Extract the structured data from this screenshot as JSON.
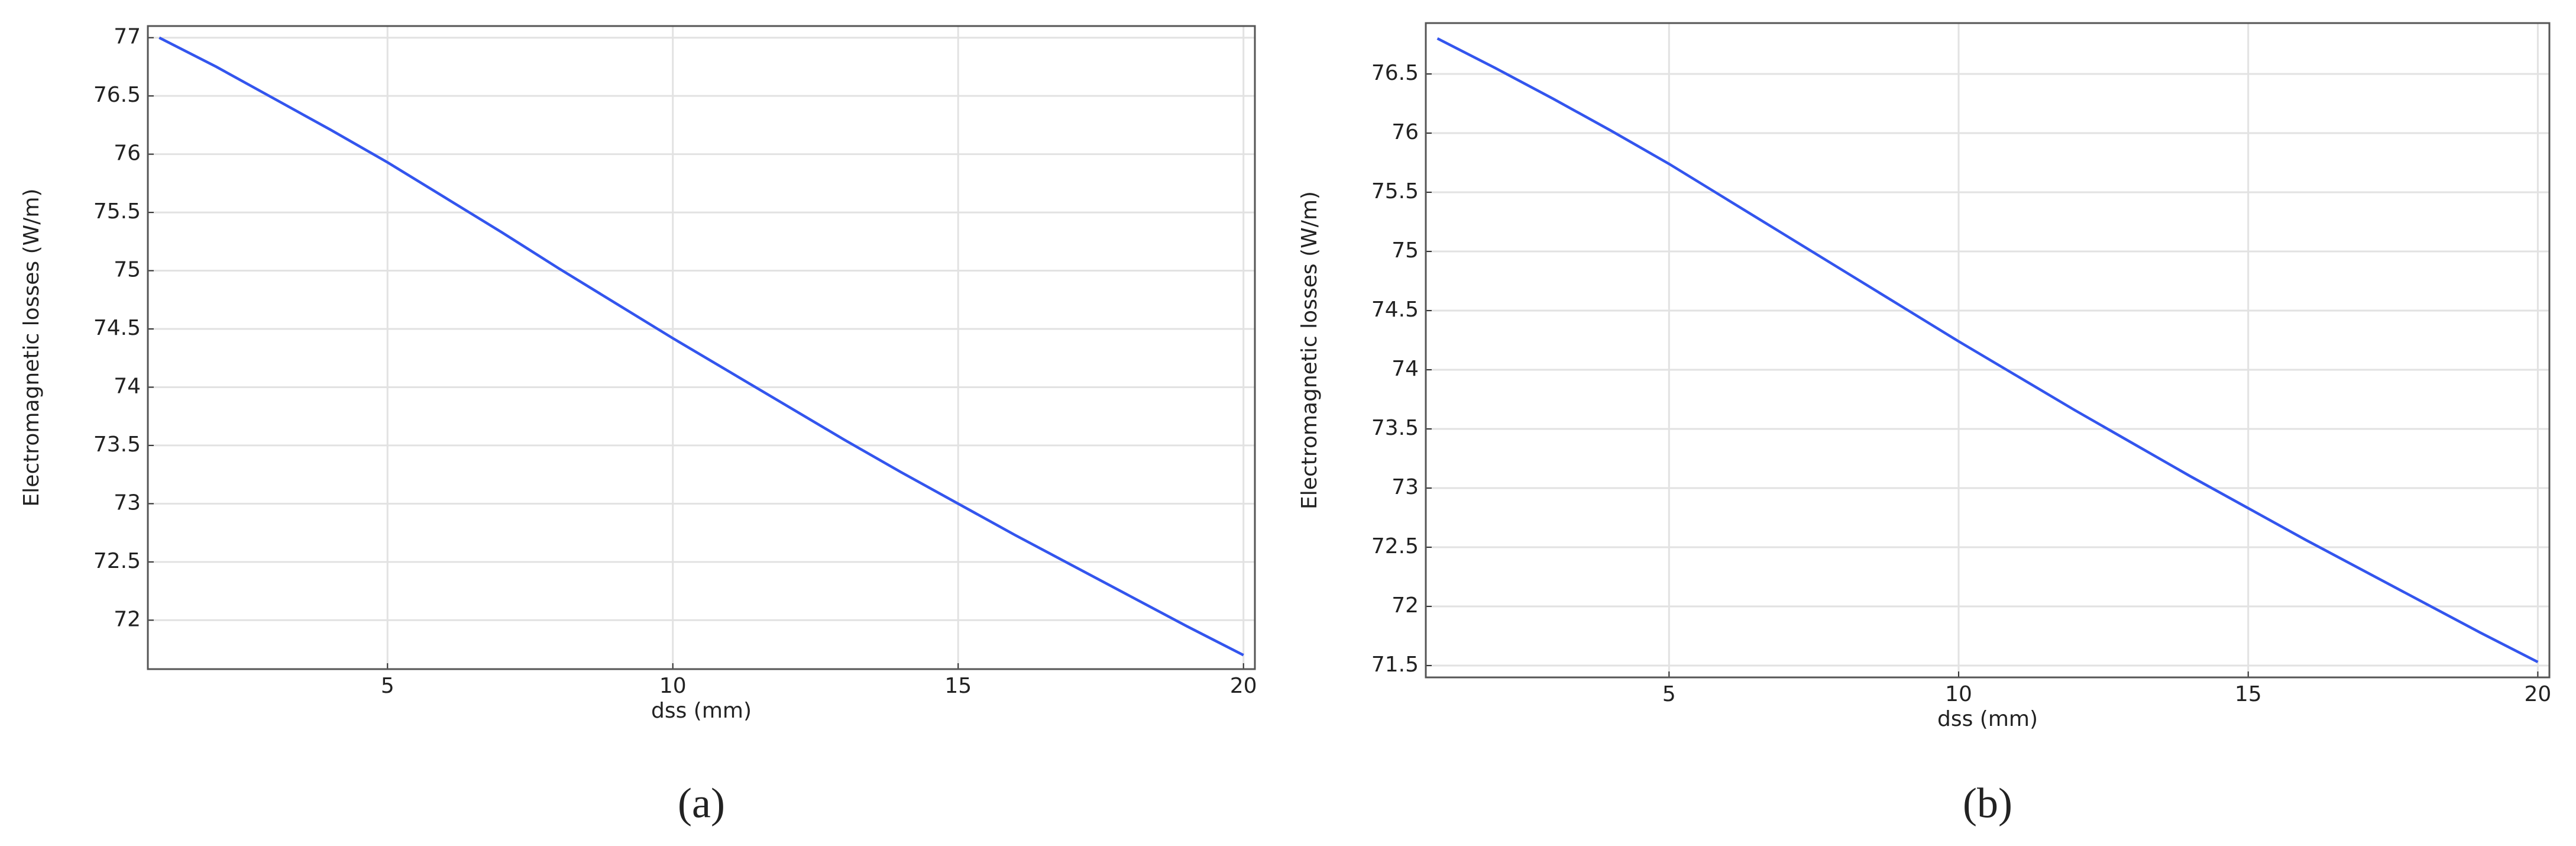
{
  "chart_data": [
    {
      "type": "line",
      "caption": "(a)",
      "x_label": "dss (mm)",
      "y_label": "Electromagnetic losses (W/m)",
      "x": [
        1,
        2,
        3,
        4,
        5,
        6,
        7,
        8,
        9,
        10,
        11,
        12,
        13,
        14,
        15,
        16,
        17,
        18,
        19,
        20
      ],
      "series": [
        {
          "color": "#3355ee",
          "values": [
            77.0,
            76.75,
            76.48,
            76.21,
            75.93,
            75.63,
            75.33,
            75.02,
            74.72,
            74.42,
            74.13,
            73.84,
            73.55,
            73.27,
            73.0,
            72.73,
            72.47,
            72.21,
            71.95,
            71.7
          ]
        }
      ],
      "xlim": [
        0.8,
        20.2
      ],
      "ylim": [
        71.58,
        77.1
      ],
      "xticks": [
        5,
        10,
        15,
        20
      ],
      "yticks": [
        72,
        72.5,
        73,
        73.5,
        74,
        74.5,
        75,
        75.5,
        76,
        76.5,
        77
      ],
      "grid": true
    },
    {
      "type": "line",
      "caption": "(b)",
      "x_label": "dss (mm)",
      "y_label": "Electromagnetic losses (W/m)",
      "x": [
        1,
        2,
        3,
        4,
        5,
        6,
        7,
        8,
        9,
        10,
        11,
        12,
        13,
        14,
        15,
        16,
        17,
        18,
        19,
        20
      ],
      "series": [
        {
          "color": "#3355ee",
          "values": [
            76.8,
            76.55,
            76.29,
            76.02,
            75.74,
            75.44,
            75.14,
            74.84,
            74.54,
            74.24,
            73.95,
            73.66,
            73.38,
            73.1,
            72.83,
            72.56,
            72.3,
            72.04,
            71.78,
            71.53
          ]
        }
      ],
      "xlim": [
        0.8,
        20.2
      ],
      "ylim": [
        71.4,
        76.93
      ],
      "xticks": [
        5,
        10,
        15,
        20
      ],
      "yticks": [
        71.5,
        72,
        72.5,
        73,
        73.5,
        74,
        74.5,
        75,
        75.5,
        76,
        76.5
      ],
      "grid": true
    }
  ]
}
